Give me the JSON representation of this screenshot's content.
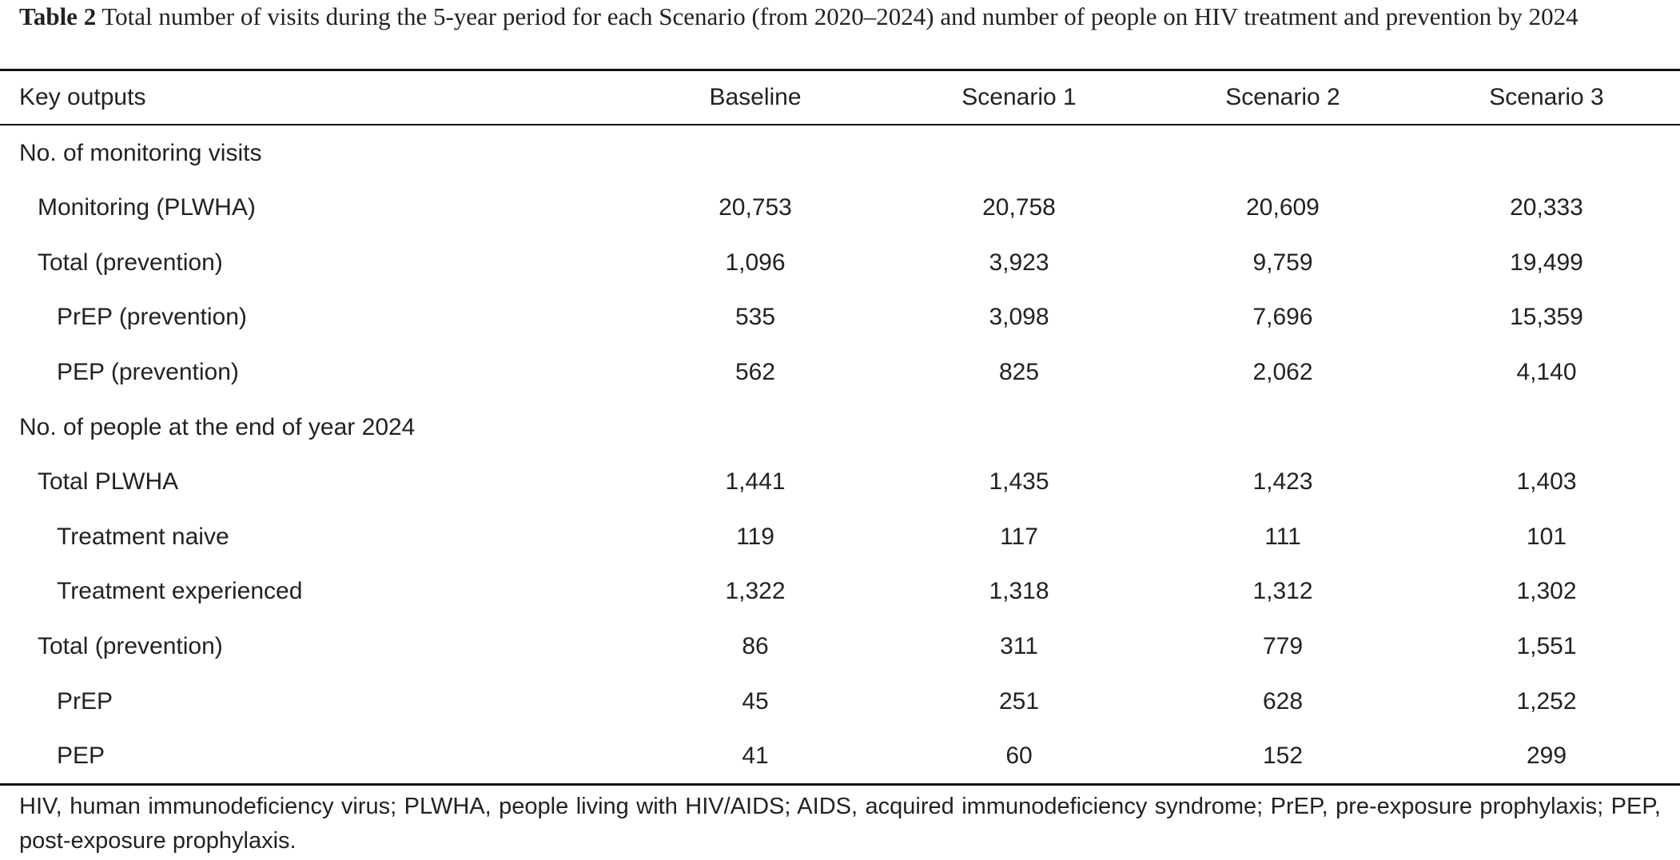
{
  "caption": {
    "label": "Table 2",
    "text": "Total number of visits during the 5-year period for each Scenario (from 2020–2024) and number of people on HIV treatment and prevention by 2024"
  },
  "table": {
    "headers": [
      "Key outputs",
      "Baseline",
      "Scenario 1",
      "Scenario 2",
      "Scenario 3"
    ],
    "rows": [
      {
        "label": "No. of monitoring visits",
        "indent": 0,
        "values": [
          "",
          "",
          "",
          ""
        ]
      },
      {
        "label": "Monitoring (PLWHA)",
        "indent": 1,
        "values": [
          "20,753",
          "20,758",
          "20,609",
          "20,333"
        ]
      },
      {
        "label": "Total (prevention)",
        "indent": 1,
        "values": [
          "1,096",
          "3,923",
          "9,759",
          "19,499"
        ]
      },
      {
        "label": "PrEP (prevention)",
        "indent": 2,
        "values": [
          "535",
          "3,098",
          "7,696",
          "15,359"
        ]
      },
      {
        "label": "PEP (prevention)",
        "indent": 2,
        "values": [
          "562",
          "825",
          "2,062",
          "4,140"
        ]
      },
      {
        "label": "No. of people at the end of year 2024",
        "indent": 0,
        "values": [
          "",
          "",
          "",
          ""
        ]
      },
      {
        "label": "Total PLWHA",
        "indent": 1,
        "values": [
          "1,441",
          "1,435",
          "1,423",
          "1,403"
        ]
      },
      {
        "label": "Treatment naive",
        "indent": 2,
        "values": [
          "119",
          "117",
          "111",
          "101"
        ]
      },
      {
        "label": "Treatment experienced",
        "indent": 2,
        "values": [
          "1,322",
          "1,318",
          "1,312",
          "1,302"
        ]
      },
      {
        "label": "Total (prevention)",
        "indent": 1,
        "values": [
          "86",
          "311",
          "779",
          "1,551"
        ]
      },
      {
        "label": "PrEP",
        "indent": 2,
        "values": [
          "45",
          "251",
          "628",
          "1,252"
        ]
      },
      {
        "label": "PEP",
        "indent": 2,
        "values": [
          "41",
          "60",
          "152",
          "299"
        ]
      }
    ]
  },
  "footnote": "HIV, human immunodeficiency virus; PLWHA, people living with HIV/AIDS; AIDS, acquired immunodeficiency syndrome; PrEP, pre-exposure prophylaxis; PEP, post-exposure prophylaxis."
}
